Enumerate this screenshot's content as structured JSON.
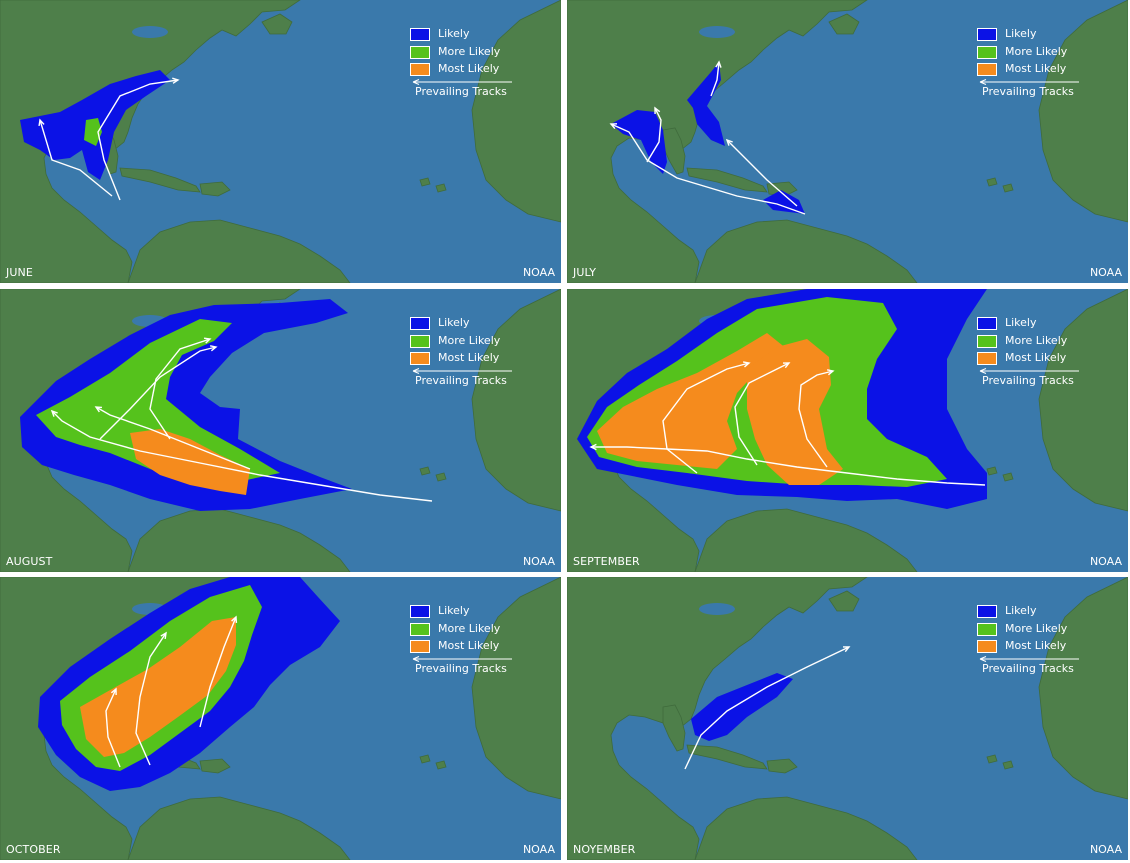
{
  "credit": "NOAA",
  "legend": {
    "likely": "Likely",
    "more_likely": "More Likely",
    "most_likely": "Most Likely",
    "tracks": "Prevailing Tracks"
  },
  "colors": {
    "ocean": "#3a79ab",
    "land": "#4e7f4a",
    "likely": "#0b12e6",
    "more_likely": "#55c21c",
    "most_likely": "#f58b1d",
    "track": "#ffffff"
  },
  "panels": [
    {
      "month": "JUNE",
      "zones": [
        "likely",
        "more_likely"
      ]
    },
    {
      "month": "JULY",
      "zones": [
        "likely"
      ]
    },
    {
      "month": "AUGUST",
      "zones": [
        "likely",
        "more_likely",
        "most_likely"
      ]
    },
    {
      "month": "SEPTEMBER",
      "zones": [
        "likely",
        "more_likely",
        "most_likely"
      ]
    },
    {
      "month": "OCTOBER",
      "zones": [
        "likely",
        "more_likely",
        "most_likely"
      ]
    },
    {
      "month": "NOYEMBER",
      "zones": [
        "likely"
      ]
    }
  ]
}
